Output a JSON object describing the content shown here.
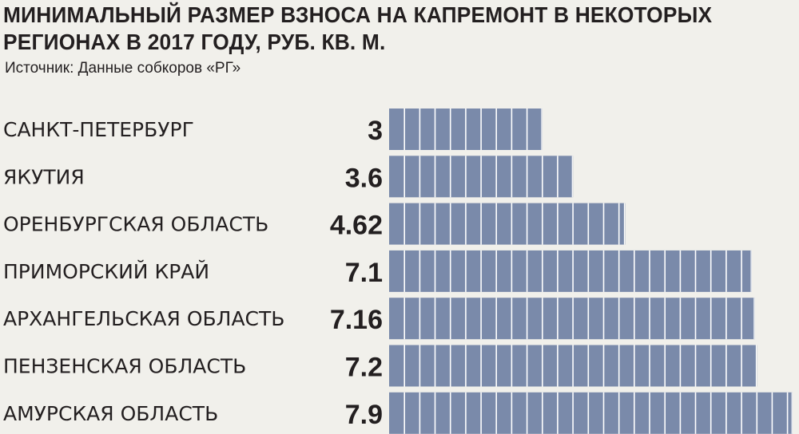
{
  "title": "МИНИМАЛЬНЫЙ РАЗМЕР ВЗНОСА НА КАПРЕМОНТ В НЕКОТОРЫХ РЕГИОНАХ В 2017 ГОДУ, РУБ. КВ. М.",
  "source": "Источник: Данные собкоров «РГ»",
  "colors": {
    "bar": "#7a8aaa",
    "segment_divider": "#ffffff",
    "background": "#f1f0eb",
    "text": "#231f20"
  },
  "chart_data": {
    "type": "bar",
    "orientation": "horizontal",
    "categories": [
      "САНКТ-ПЕТЕРБУРГ",
      "ЯКУТИЯ",
      "ОРЕНБУРГСКАЯ ОБЛАСТЬ",
      "ПРИМОРСКИЙ КРАЙ",
      "АРХАНГЕЛЬСКАЯ ОБЛАСТЬ",
      "ПЕНЗЕНСКАЯ ОБЛАСТЬ",
      "АМУРСКАЯ ОБЛАСТЬ"
    ],
    "values": [
      3,
      3.6,
      4.62,
      7.1,
      7.16,
      7.2,
      7.9
    ],
    "value_labels": [
      "3",
      "3.6",
      "4.62",
      "7.1",
      "7.16",
      "7.2",
      "7.9"
    ],
    "segment_unit": 0.3,
    "xlim": [
      0,
      7.9
    ],
    "grid": false,
    "legend": "none"
  }
}
